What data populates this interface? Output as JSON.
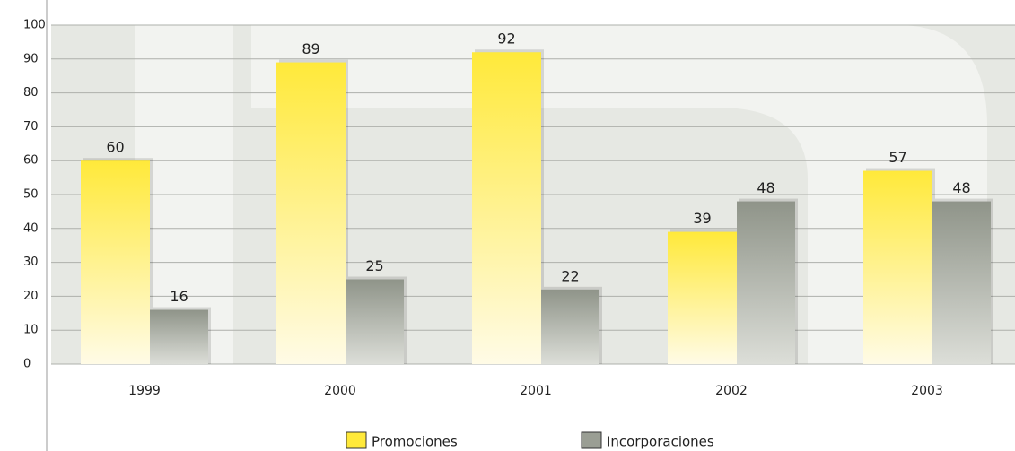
{
  "chart_data": {
    "type": "bar",
    "categories": [
      "1999",
      "2000",
      "2001",
      "2002",
      "2003"
    ],
    "series": [
      {
        "name": "Promociones",
        "color": "#ffe93a",
        "values": [
          60,
          89,
          92,
          39,
          57
        ]
      },
      {
        "name": "Incorporaciones",
        "color": "#9a9e94",
        "values": [
          16,
          25,
          22,
          48,
          48
        ]
      }
    ],
    "ylim": [
      0,
      100
    ],
    "yticks": [
      0,
      10,
      20,
      30,
      40,
      50,
      60,
      70,
      80,
      90,
      100
    ],
    "grid": true,
    "legend": "bottom"
  }
}
